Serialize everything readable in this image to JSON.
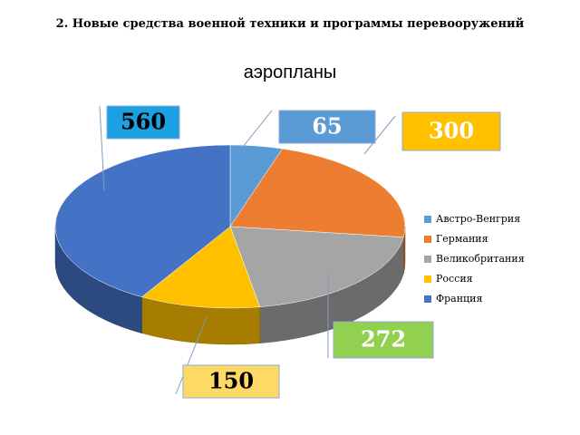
{
  "heading": "2. Новые средства военной техники и программы перевооружений",
  "chart_data": {
    "type": "pie3d",
    "title": "аэропланы",
    "categories": [
      "Австро-Венгрия",
      "Германия",
      "Великобритания",
      "Россия",
      "Франция"
    ],
    "values": [
      65,
      300,
      272,
      150,
      560
    ],
    "colors": [
      "#5b9bd5",
      "#ed7d31",
      "#a5a5a5",
      "#ffc000",
      "#4472c4"
    ],
    "legend": "right"
  }
}
